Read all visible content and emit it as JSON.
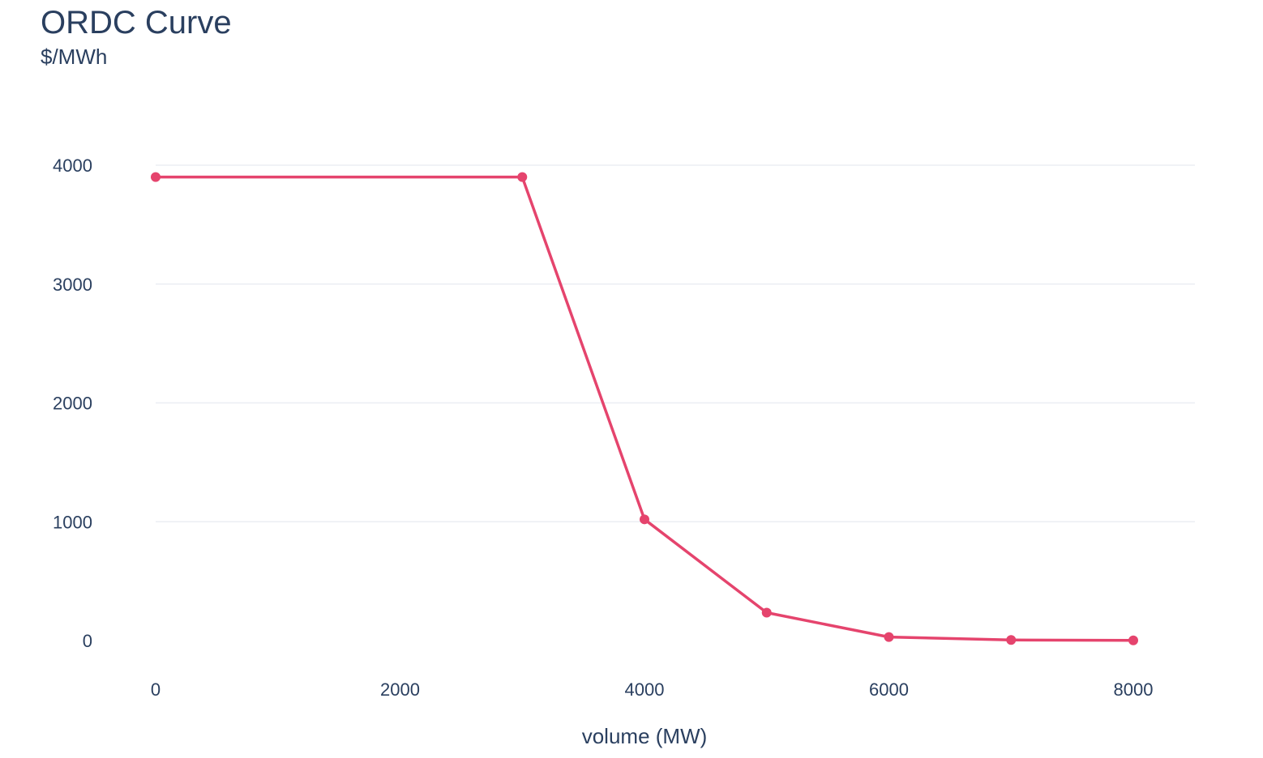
{
  "chart_data": {
    "type": "line",
    "title": "ORDC Curve",
    "subtitle": "$/MWh",
    "xlabel": "volume (MW)",
    "ylabel": "",
    "xlim": [
      0,
      8500
    ],
    "ylim": [
      -100,
      4100
    ],
    "xticks": [
      0,
      2000,
      4000,
      6000,
      8000
    ],
    "yticks": [
      0,
      1000,
      2000,
      3000,
      4000
    ],
    "grid": true,
    "series": [
      {
        "color": "#e5446d",
        "x": [
          0,
          3000,
          4000,
          5000,
          6000,
          7000,
          8000
        ],
        "y": [
          3900,
          3900,
          1020,
          235,
          30,
          5,
          2
        ]
      }
    ]
  }
}
